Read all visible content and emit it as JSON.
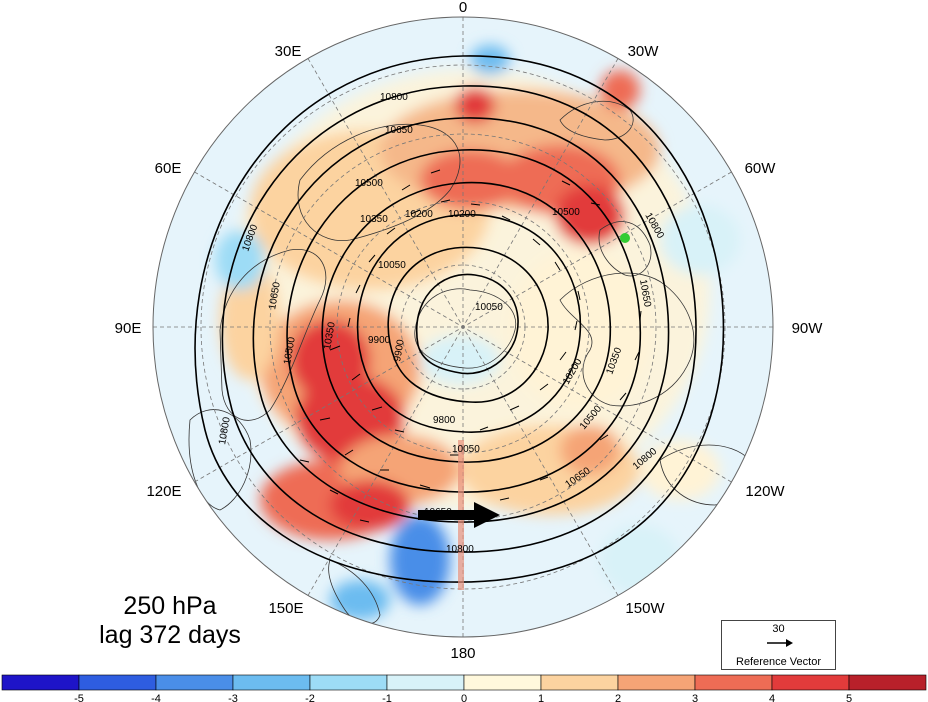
{
  "map": {
    "projection": "north-polar-stereographic",
    "longitude_labels": [
      "0",
      "30W",
      "60W",
      "90W",
      "120W",
      "150W",
      "180",
      "150E",
      "120E",
      "90E",
      "60E",
      "30E"
    ],
    "contour_labels": [
      "10800",
      "10650",
      "10500",
      "10350",
      "10200",
      "10050",
      "9900",
      "9800",
      "10500",
      "10650",
      "10800",
      "10050",
      "10200",
      "10350",
      "10500",
      "10650",
      "10800",
      "10800",
      "10650",
      "10500",
      "10350",
      "10200",
      "10050",
      "9900",
      "10800",
      "10650",
      "10800"
    ],
    "contour_levels": [
      9800,
      9900,
      10050,
      10200,
      10350,
      10500,
      10650,
      10800,
      10950
    ],
    "marker_color": "#33cc33",
    "wind_arrow_color": "#000000",
    "ocean_color": "#e6f4fb"
  },
  "title": {
    "line1": "250 hPa",
    "line2": "lag 372 days"
  },
  "reference_vector": {
    "magnitude": "30",
    "label": "Reference Vector"
  },
  "colorbar": {
    "colors": [
      "#1e14c8",
      "#2e5de0",
      "#4a8ee8",
      "#6cbcf0",
      "#9ddcf6",
      "#d8f2f8",
      "#fff8dc",
      "#fcd3a0",
      "#f5a476",
      "#ee6c55",
      "#e23b3b",
      "#b8202a"
    ],
    "tick_labels": [
      "-5",
      "-4",
      "-3",
      "-2",
      "-1",
      "0",
      "1",
      "2",
      "3",
      "4",
      "5"
    ]
  }
}
